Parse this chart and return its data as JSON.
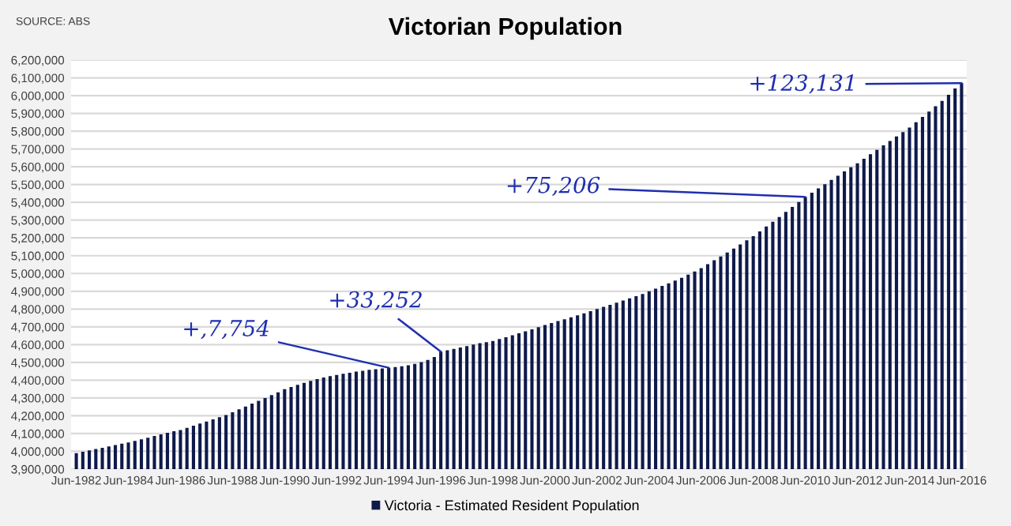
{
  "chart_data": {
    "type": "bar",
    "title": "Victorian Population",
    "categories": [
      "Jun-1982",
      null,
      null,
      null,
      null,
      null,
      null,
      null,
      "Jun-1984",
      null,
      null,
      null,
      null,
      null,
      null,
      null,
      "Jun-1986",
      null,
      null,
      null,
      null,
      null,
      null,
      null,
      "Jun-1988",
      null,
      null,
      null,
      null,
      null,
      null,
      null,
      "Jun-1990",
      null,
      null,
      null,
      null,
      null,
      null,
      null,
      "Jun-1992",
      null,
      null,
      null,
      null,
      null,
      null,
      null,
      "Jun-1994",
      null,
      null,
      null,
      null,
      null,
      null,
      null,
      "Jun-1996",
      null,
      null,
      null,
      null,
      null,
      null,
      null,
      "Jun-1998",
      null,
      null,
      null,
      null,
      null,
      null,
      null,
      "Jun-2000",
      null,
      null,
      null,
      null,
      null,
      null,
      null,
      "Jun-2002",
      null,
      null,
      null,
      null,
      null,
      null,
      null,
      "Jun-2004",
      null,
      null,
      null,
      null,
      null,
      null,
      null,
      "Jun-2006",
      null,
      null,
      null,
      null,
      null,
      null,
      null,
      "Jun-2008",
      null,
      null,
      null,
      null,
      null,
      null,
      null,
      "Jun-2010",
      null,
      null,
      null,
      null,
      null,
      null,
      null,
      "Jun-2012",
      null,
      null,
      null,
      null,
      null,
      null,
      null,
      "Jun-2014",
      null,
      null,
      null,
      null,
      null,
      null,
      null,
      "Jun-2016"
    ],
    "series": [
      {
        "name": "Victoria - Estimated Resident Population",
        "color": "#0f1a4a",
        "values": [
          3990000,
          3998000,
          4005000,
          4013000,
          4020000,
          4028000,
          4035000,
          4043000,
          4050000,
          4059000,
          4068000,
          4077000,
          4086000,
          4095000,
          4104000,
          4113000,
          4120000,
          4132000,
          4144000,
          4156000,
          4168000,
          4180000,
          4192000,
          4204000,
          4220000,
          4236000,
          4252000,
          4268000,
          4284000,
          4300000,
          4316000,
          4332000,
          4350000,
          4362000,
          4374000,
          4385000,
          4396000,
          4406000,
          4415000,
          4423000,
          4430000,
          4436000,
          4442000,
          4448000,
          4453000,
          4458000,
          4462000,
          4466000,
          4470000,
          4474000,
          4478000,
          4484000,
          4492000,
          4502000,
          4514000,
          4530000,
          4560000,
          4568000,
          4576000,
          4584000,
          4592000,
          4600000,
          4608000,
          4614000,
          4620000,
          4631000,
          4642000,
          4653000,
          4664000,
          4675000,
          4686000,
          4698000,
          4710000,
          4721000,
          4732000,
          4743000,
          4754000,
          4765000,
          4776000,
          4788000,
          4800000,
          4812000,
          4824000,
          4836000,
          4848000,
          4860000,
          4872000,
          4885000,
          4900000,
          4915000,
          4930000,
          4945000,
          4960000,
          4976000,
          4993000,
          5011000,
          5030000,
          5052000,
          5074000,
          5096000,
          5118000,
          5140000,
          5163000,
          5186000,
          5210000,
          5237000,
          5264000,
          5291000,
          5318000,
          5346000,
          5374000,
          5402000,
          5430000,
          5454000,
          5478000,
          5502000,
          5526000,
          5550000,
          5574000,
          5597000,
          5620000,
          5645000,
          5670000,
          5695000,
          5720000,
          5745000,
          5770000,
          5795000,
          5820000,
          5850000,
          5880000,
          5910000,
          5940000,
          5970000,
          6005000,
          6040000,
          6070000
        ]
      }
    ],
    "ylim": [
      3900000,
      6200000
    ],
    "yticks": [
      {
        "value": 3900000,
        "label": "3,900,000"
      },
      {
        "value": 4000000,
        "label": "4,000,000"
      },
      {
        "value": 4100000,
        "label": "4,100,000"
      },
      {
        "value": 4200000,
        "label": "4,200,000"
      },
      {
        "value": 4300000,
        "label": "4,300,000"
      },
      {
        "value": 4400000,
        "label": "4,400,000"
      },
      {
        "value": 4500000,
        "label": "4,500,000"
      },
      {
        "value": 4600000,
        "label": "4,600,000"
      },
      {
        "value": 4700000,
        "label": "4,700,000"
      },
      {
        "value": 4800000,
        "label": "4,800,000"
      },
      {
        "value": 4900000,
        "label": "4,900,000"
      },
      {
        "value": 5000000,
        "label": "5,000,000"
      },
      {
        "value": 5100000,
        "label": "5,100,000"
      },
      {
        "value": 5200000,
        "label": "5,200,000"
      },
      {
        "value": 5300000,
        "label": "5,300,000"
      },
      {
        "value": 5400000,
        "label": "5,400,000"
      },
      {
        "value": 5500000,
        "label": "5,500,000"
      },
      {
        "value": 5600000,
        "label": "5,600,000"
      },
      {
        "value": 5700000,
        "label": "5,700,000"
      },
      {
        "value": 5800000,
        "label": "5,800,000"
      },
      {
        "value": 5900000,
        "label": "5,900,000"
      },
      {
        "value": 6000000,
        "label": "6,000,000"
      },
      {
        "value": 6100000,
        "label": "6,100,000"
      },
      {
        "value": 6200000,
        "label": "6,200,000"
      }
    ],
    "grid": "y",
    "legend": "bottom",
    "annotations": [
      "SOURCE: ABS",
      {
        "text": "+,7,754",
        "x": "Jun-1994",
        "y": 4470000
      },
      {
        "text": "+33,252",
        "x": "Jun-1996",
        "y": 4560000
      },
      {
        "text": "+75,206",
        "x": "Jun-2010",
        "y": 5430000
      },
      {
        "text": "+123,131",
        "x": "Jun-2016",
        "y": 6070000
      }
    ]
  }
}
